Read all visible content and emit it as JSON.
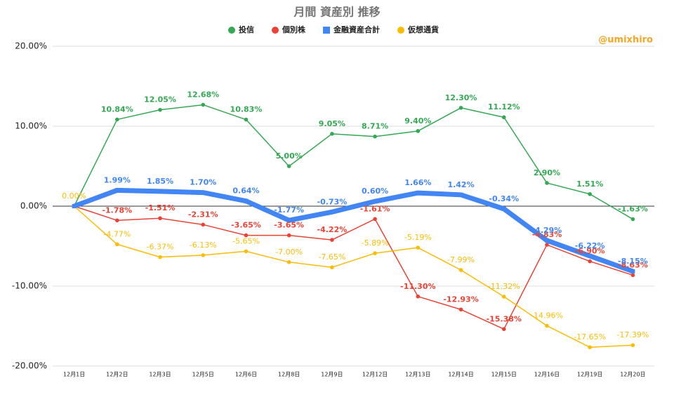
{
  "chart_data": {
    "type": "line",
    "title": "月間 資産別 推移",
    "watermark": "@umixhiro",
    "categories": [
      "12月1日",
      "12月2日",
      "12月3日",
      "12月5日",
      "12月6日",
      "12月8日",
      "12月9日",
      "12月12日",
      "12月13日",
      "12月14日",
      "12月15日",
      "12月16日",
      "12月19日",
      "12月20日"
    ],
    "series": [
      {
        "name": "投信",
        "color": "#34a853",
        "marker": "circle",
        "width": 1.5,
        "values": [
          0,
          10.84,
          12.05,
          12.68,
          10.83,
          5.0,
          9.05,
          8.71,
          9.4,
          12.3,
          11.12,
          2.9,
          1.51,
          -1.63
        ],
        "value_labels": [
          null,
          "10.84%",
          "12.05%",
          "12.68%",
          "10.83%",
          "5.00%",
          "9.05%",
          "8.71%",
          "9.40%",
          "12.30%",
          "11.12%",
          "2.90%",
          "1.51%",
          "-1.63%"
        ]
      },
      {
        "name": "個別株",
        "color": "#ea4335",
        "marker": "circle",
        "width": 1.5,
        "values": [
          0,
          -1.78,
          -1.51,
          -2.31,
          -3.65,
          -3.65,
          -4.22,
          -1.61,
          -11.3,
          -12.93,
          -15.38,
          -4.83,
          -6.9,
          -8.63
        ],
        "value_labels": [
          null,
          "-1.78%",
          "-1.51%",
          "-2.31%",
          "-3.65%",
          "-3.65%",
          "-4.22%",
          "-1.61%",
          "-11.30%",
          "-12.93%",
          "-15.38%",
          "-4.83%",
          "-6.90%",
          "-8.63%"
        ]
      },
      {
        "name": "金融資産合計",
        "color": "#4285f4",
        "marker": "square",
        "width": 7,
        "values": [
          0,
          1.99,
          1.85,
          1.7,
          0.64,
          -1.77,
          -0.73,
          0.6,
          1.66,
          1.42,
          -0.34,
          -4.29,
          -6.22,
          -8.15
        ],
        "value_labels": [
          null,
          "1.99%",
          "1.85%",
          "1.70%",
          "0.64%",
          "-1.77%",
          "-0.73%",
          "0.60%",
          "1.66%",
          "1.42%",
          "-0.34%",
          "-4.29%",
          "-6.22%",
          "-8.15%"
        ]
      },
      {
        "name": "仮想通貨",
        "color": "#fbbc04",
        "marker": "circle",
        "width": 1.5,
        "values": [
          0,
          -4.77,
          -6.37,
          -6.13,
          -5.65,
          -7.0,
          -7.65,
          -5.89,
          -5.19,
          -7.99,
          -11.32,
          -14.96,
          -17.65,
          -17.39
        ],
        "value_labels": [
          "0.00%",
          "-4.77%",
          "-6.37%",
          "-6.13%",
          "-5.65%",
          "-7.00%",
          "-7.65%",
          "-5.89%",
          "-5.19%",
          "-7.99%",
          "-11.32%",
          "-14.96%",
          "-17.65%",
          "-17.39%"
        ]
      }
    ],
    "ylim": [
      -20,
      20
    ],
    "yticks": [
      {
        "value": -20,
        "label": "-20.00%"
      },
      {
        "value": -10,
        "label": "-10.00%"
      },
      {
        "value": 0,
        "label": "0.00%"
      },
      {
        "value": 10,
        "label": "10.00%"
      },
      {
        "value": 20,
        "label": "20.00%"
      }
    ],
    "grid": true
  }
}
